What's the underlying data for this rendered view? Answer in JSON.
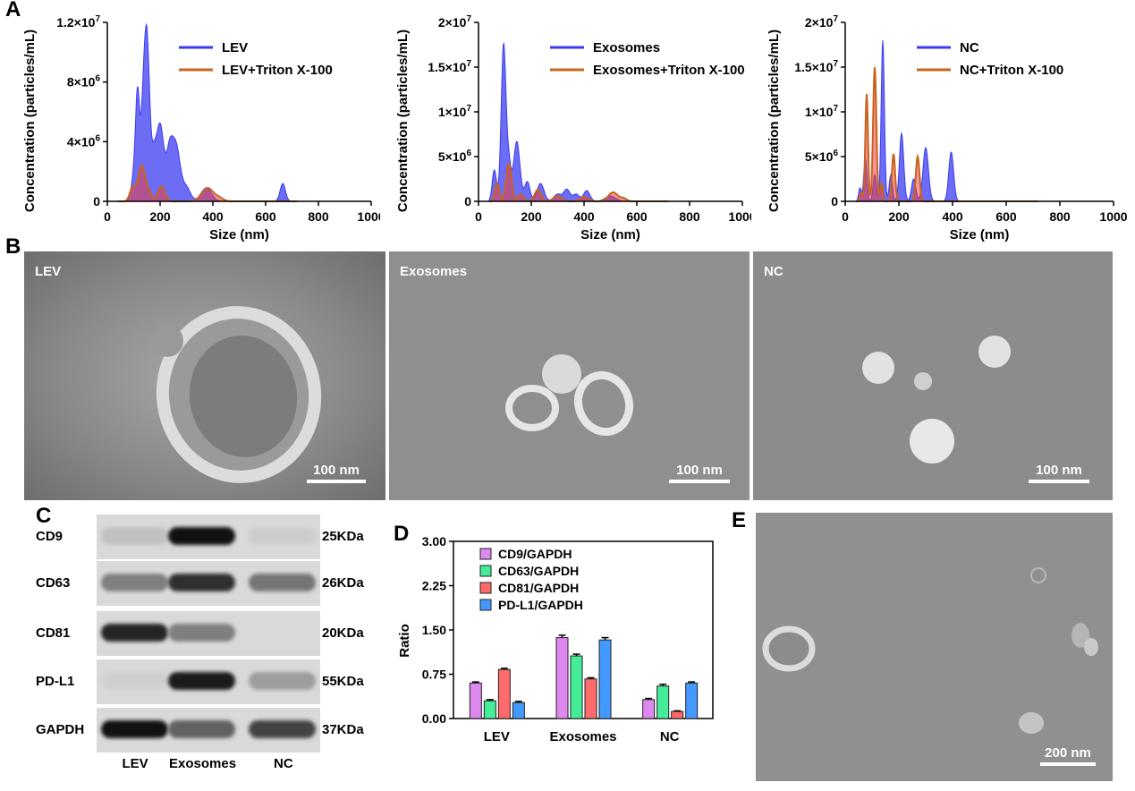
{
  "panels": {
    "A": "A",
    "B": "B",
    "C": "C",
    "D": "D",
    "E": "E"
  },
  "nta_charts": [
    {
      "type": "area",
      "ylabel": "Concentration (particles/mL)",
      "xlabel": "Size (nm)",
      "xlim": [
        0,
        1000
      ],
      "xticks": [
        "0",
        "200",
        "400",
        "600",
        "800",
        "1000"
      ],
      "ylim": [
        0,
        12000000
      ],
      "yticks": [
        {
          "v": 0,
          "base": "0",
          "exp": ""
        },
        {
          "v": 4000000,
          "base": "4×10",
          "exp": "6"
        },
        {
          "v": 8000000,
          "base": "8×10",
          "exp": "6"
        },
        {
          "v": 12000000,
          "base": "1.2×10",
          "exp": "7"
        }
      ],
      "legend": [
        "LEV",
        "LEV+Triton X-100"
      ],
      "colors": {
        "main": "#3b3bf0",
        "triton_fill": "#f04040",
        "triton_line": "#c8641e"
      },
      "series": [
        {
          "name": "LEV",
          "peaks": [
            [
              100,
              1500000,
              10
            ],
            [
              115,
              7000000,
              8
            ],
            [
              135,
              4500000,
              8
            ],
            [
              150,
              10800000,
              10
            ],
            [
              175,
              2500000,
              10
            ],
            [
              200,
              5100000,
              14
            ],
            [
              235,
              2800000,
              12
            ],
            [
              260,
              3700000,
              16
            ],
            [
              300,
              900000,
              15
            ],
            [
              375,
              900000,
              20
            ],
            [
              665,
              1200000,
              10
            ]
          ]
        },
        {
          "name": "LEV+Triton X-100",
          "peaks": [
            [
              95,
              900000,
              10
            ],
            [
              130,
              2400000,
              14
            ],
            [
              160,
              500000,
              10
            ],
            [
              205,
              1000000,
              13
            ],
            [
              380,
              900000,
              22
            ],
            [
              425,
              200000,
              15
            ]
          ]
        }
      ]
    },
    {
      "type": "area",
      "ylabel": "Concentration (particles/mL)",
      "xlabel": "Size (nm)",
      "xlim": [
        0,
        1000
      ],
      "xticks": [
        "0",
        "200",
        "400",
        "600",
        "800",
        "1000"
      ],
      "ylim": [
        0,
        20000000
      ],
      "yticks": [
        {
          "v": 0,
          "base": "0",
          "exp": ""
        },
        {
          "v": 5000000,
          "base": "5×10",
          "exp": "6"
        },
        {
          "v": 10000000,
          "base": "1×10",
          "exp": "7"
        },
        {
          "v": 15000000,
          "base": "1.5×10",
          "exp": "7"
        },
        {
          "v": 20000000,
          "base": "2×10",
          "exp": "7"
        }
      ],
      "legend": [
        "Exosomes",
        "Exosomes+Triton X-100"
      ],
      "colors": {
        "main": "#3b3bf0",
        "triton_fill": "#f04040",
        "triton_line": "#c8641e"
      },
      "series": [
        {
          "name": "Exosomes",
          "peaks": [
            [
              60,
              3500000,
              8
            ],
            [
              95,
              17500000,
              9
            ],
            [
              115,
              4000000,
              8
            ],
            [
              145,
              6700000,
              12
            ],
            [
              185,
              2200000,
              10
            ],
            [
              235,
              2000000,
              13
            ],
            [
              300,
              800000,
              15
            ],
            [
              335,
              1300000,
              12
            ],
            [
              370,
              800000,
              12
            ],
            [
              410,
              1200000,
              12
            ],
            [
              500,
              600000,
              20
            ]
          ]
        },
        {
          "name": "Exosomes+Triton X-100",
          "peaks": [
            [
              70,
              2000000,
              8
            ],
            [
              115,
              4200000,
              10
            ],
            [
              160,
              800000,
              10
            ],
            [
              225,
              1300000,
              12
            ],
            [
              300,
              600000,
              15
            ],
            [
              400,
              500000,
              15
            ],
            [
              510,
              1000000,
              18
            ],
            [
              550,
              300000,
              12
            ]
          ]
        }
      ]
    },
    {
      "type": "area",
      "ylabel": "Concentration (particles/mL)",
      "xlabel": "Size (nm)",
      "xlim": [
        0,
        1000
      ],
      "xticks": [
        "0",
        "200",
        "400",
        "600",
        "800",
        "1000"
      ],
      "ylim": [
        0,
        20000000
      ],
      "yticks": [
        {
          "v": 0,
          "base": "0",
          "exp": ""
        },
        {
          "v": 5000000,
          "base": "5×10",
          "exp": "6"
        },
        {
          "v": 10000000,
          "base": "1×10",
          "exp": "7"
        },
        {
          "v": 15000000,
          "base": "1.5×10",
          "exp": "7"
        },
        {
          "v": 20000000,
          "base": "2×10",
          "exp": "7"
        }
      ],
      "legend": [
        "NC",
        "NC+Triton X-100"
      ],
      "colors": {
        "main": "#3b3bf0",
        "triton_fill": "#f04040",
        "triton_line": "#c8641e"
      },
      "series": [
        {
          "name": "NC",
          "peaks": [
            [
              55,
              1500000,
              5
            ],
            [
              75,
              4800000,
              6
            ],
            [
              110,
              3000000,
              6
            ],
            [
              140,
              18000000,
              6
            ],
            [
              170,
              3000000,
              6
            ],
            [
              210,
              7600000,
              8
            ],
            [
              255,
              2500000,
              8
            ],
            [
              300,
              6000000,
              10
            ],
            [
              395,
              5500000,
              9
            ]
          ]
        },
        {
          "name": "NC+Triton X-100",
          "peaks": [
            [
              60,
              1000000,
              5
            ],
            [
              80,
              12000000,
              5
            ],
            [
              110,
              15000000,
              6
            ],
            [
              135,
              2000000,
              5
            ],
            [
              180,
              5300000,
              6
            ],
            [
              270,
              5000000,
              7
            ]
          ]
        }
      ]
    }
  ],
  "micrographs": [
    {
      "label": "LEV",
      "scale": "100 nm"
    },
    {
      "label": "Exosomes",
      "scale": "100 nm"
    },
    {
      "label": "NC",
      "scale": "100 nm"
    }
  ],
  "western": {
    "rows": [
      {
        "name": "CD9",
        "kda": "25KDa",
        "bands": [
          0.12,
          1.0,
          0.06
        ]
      },
      {
        "name": "CD63",
        "kda": "26KDa",
        "bands": [
          0.45,
          0.85,
          0.5
        ]
      },
      {
        "name": "CD81",
        "kda": "20KDa",
        "bands": [
          0.9,
          0.45,
          0.0
        ]
      },
      {
        "name": "PD-L1",
        "kda": "55KDa",
        "bands": [
          0.05,
          0.95,
          0.3
        ]
      },
      {
        "name": "GAPDH",
        "kda": "37KDa",
        "bands": [
          1.0,
          0.6,
          0.75
        ]
      }
    ],
    "lanes": [
      "LEV",
      "Exosomes",
      "NC"
    ]
  },
  "chart_data": {
    "type": "bar",
    "ylabel": "Ratio",
    "categories": [
      "LEV",
      "Exosomes",
      "NC"
    ],
    "ylim": [
      0,
      3.0
    ],
    "yticks": [
      "0.00",
      "0.75",
      "1.50",
      "2.25",
      "3.00"
    ],
    "legend_position": "top-left",
    "series": [
      {
        "name": "CD9/GAPDH",
        "color": "#dd88ee",
        "values": [
          0.6,
          1.37,
          0.32
        ],
        "errors": [
          0.02,
          0.04,
          0.02
        ]
      },
      {
        "name": "CD63/GAPDH",
        "color": "#44ee99",
        "values": [
          0.3,
          1.06,
          0.55
        ],
        "errors": [
          0.02,
          0.03,
          0.03
        ]
      },
      {
        "name": "CD81/GAPDH",
        "color": "#ff6a6a",
        "values": [
          0.83,
          0.67,
          0.12
        ],
        "errors": [
          0.02,
          0.02,
          0.01
        ]
      },
      {
        "name": "PD-L1/GAPDH",
        "color": "#4499ff",
        "values": [
          0.27,
          1.33,
          0.6
        ],
        "errors": [
          0.02,
          0.04,
          0.02
        ]
      }
    ]
  },
  "micrograph_e": {
    "scale": "200 nm"
  }
}
